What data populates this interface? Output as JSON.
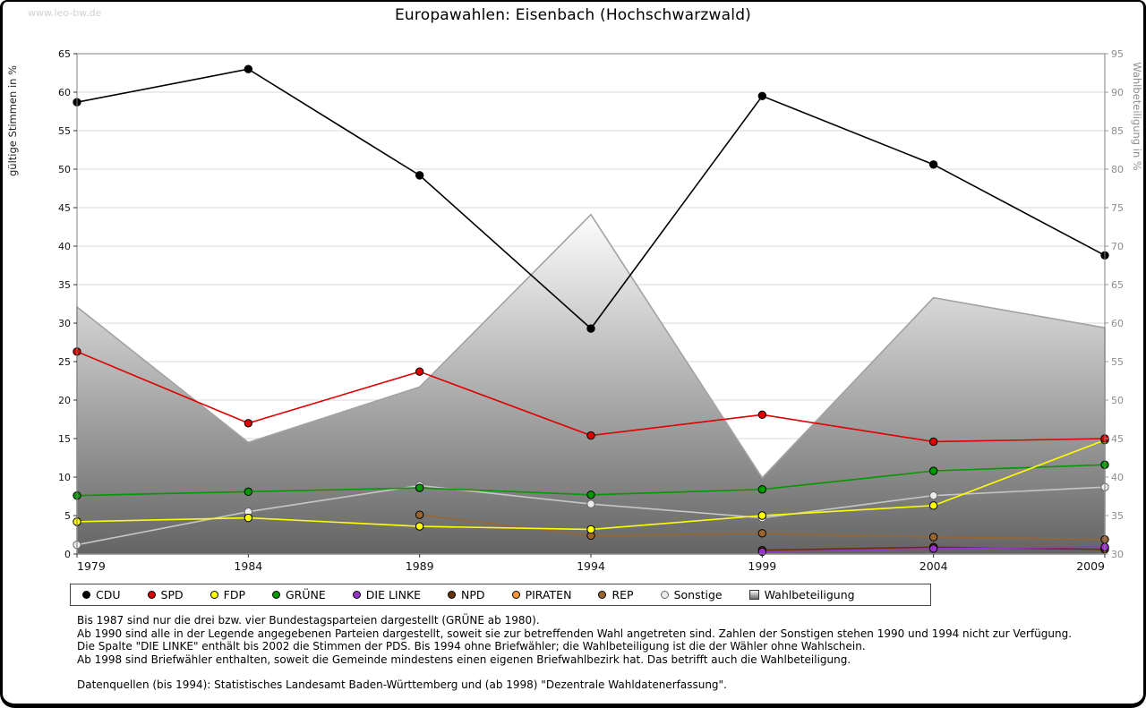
{
  "watermark": "www.leo-bw.de",
  "chart_data": {
    "type": "line",
    "title": "Europawahlen: Eisenbach (Hochschwarzwald)",
    "ylabel_left": "gültige Stimmen in %",
    "ylabel_right": "Wahlbeteiligung in %",
    "ylim_left": [
      0,
      65
    ],
    "ylim_right": [
      30,
      95
    ],
    "ytick_step": 5,
    "yticks_left": [
      0,
      5,
      10,
      15,
      20,
      25,
      30,
      35,
      40,
      45,
      50,
      55,
      60,
      65
    ],
    "yticks_right": [
      30,
      35,
      40,
      45,
      50,
      55,
      60,
      65,
      70,
      75,
      80,
      85,
      90,
      95
    ],
    "grid": true,
    "legend_position": "bottom",
    "categories": [
      "1979",
      "1984",
      "1989",
      "1994",
      "1999",
      "2004",
      "2009"
    ],
    "series": [
      {
        "name": "CDU",
        "color": "#000000",
        "marker": "circle",
        "values": [
          58.7,
          63.0,
          49.2,
          29.3,
          59.5,
          50.6,
          38.8
        ]
      },
      {
        "name": "SPD",
        "color": "#dd0000",
        "marker": "circle",
        "values": [
          26.3,
          17.0,
          23.7,
          15.4,
          18.1,
          14.6,
          15.0
        ]
      },
      {
        "name": "FDP",
        "color": "#ffff00",
        "marker": "circle",
        "values": [
          4.2,
          4.7,
          3.6,
          3.2,
          5.0,
          6.3,
          14.8
        ]
      },
      {
        "name": "GRÜNE",
        "color": "#009900",
        "marker": "circle",
        "values": [
          7.6,
          8.1,
          8.6,
          7.7,
          8.4,
          10.8,
          11.6
        ]
      },
      {
        "name": "DIE LINKE",
        "color": "#9933cc",
        "marker": "circle",
        "values": [
          null,
          null,
          null,
          null,
          0.3,
          0.7,
          0.9
        ]
      },
      {
        "name": "NPD",
        "color": "#663300",
        "marker": "circle",
        "values": [
          null,
          null,
          null,
          null,
          0.5,
          0.9,
          0.6
        ]
      },
      {
        "name": "PIRATEN",
        "color": "#ff9933",
        "marker": "circle",
        "values": [
          null,
          null,
          null,
          null,
          null,
          null,
          0.8
        ]
      },
      {
        "name": "REP",
        "color": "#996633",
        "marker": "circle",
        "values": [
          null,
          null,
          5.1,
          2.4,
          2.7,
          2.2,
          1.9
        ]
      },
      {
        "name": "Sonstige",
        "color": "#c6c6c6",
        "marker_fill": "#ececec",
        "marker_stroke": "#666666",
        "marker": "circle",
        "values": [
          1.2,
          5.5,
          8.9,
          6.5,
          4.7,
          7.6,
          8.7
        ]
      }
    ],
    "turnout": {
      "name": "Wahlbeteiligung",
      "axis": "right",
      "type": "area",
      "fill_top": "#fdfdfd",
      "fill_bottom": "#646464",
      "values": [
        62.1,
        44.5,
        51.7,
        74.1,
        39.9,
        63.3,
        59.4
      ]
    }
  },
  "notes": [
    "Bis 1987 sind nur die drei bzw. vier Bundestagsparteien dargestellt (GRÜNE ab 1980).",
    "Ab 1990 sind alle in der Legende angegebenen Parteien dargestellt, soweit sie zur betreffenden Wahl angetreten sind. Zahlen der Sonstigen stehen 1990 und 1994 nicht zur Verfügung.",
    "Die Spalte \"DIE LINKE\" enthält bis 2002 die Stimmen der PDS. Bis 1994 ohne Briefwähler; die Wahlbeteiligung ist die der Wähler ohne Wahlschein.",
    "Ab 1998 sind Briefwähler enthalten, soweit die Gemeinde mindestens einen eigenen Briefwahlbezirk hat. Das betrifft auch die Wahlbeteiligung.",
    "Datenquellen (bis 1994): Statistisches Landesamt Baden-Württemberg und (ab 1998) \"Dezentrale Wahldatenerfassung\"."
  ]
}
